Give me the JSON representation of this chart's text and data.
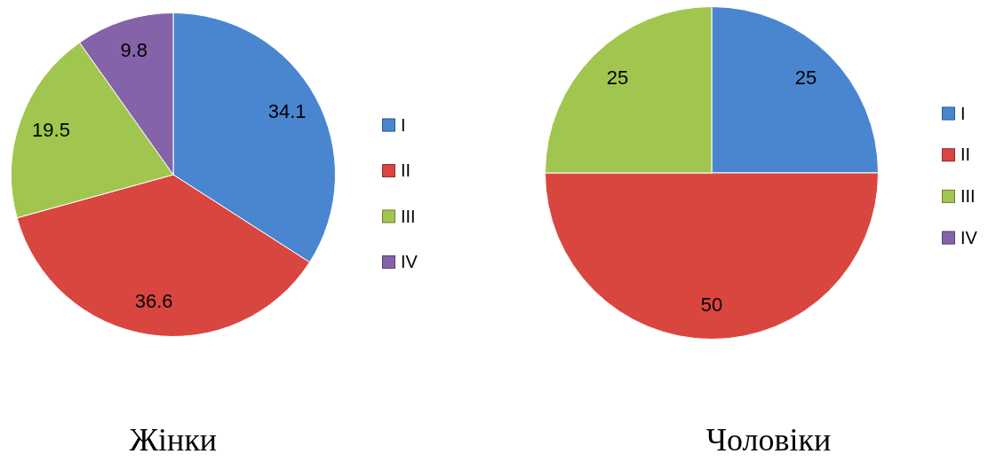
{
  "chart_data": [
    {
      "type": "pie",
      "title": "Жінки",
      "categories": [
        "I",
        "II",
        "III",
        "IV"
      ],
      "values": [
        34.1,
        36.6,
        19.5,
        9.8
      ],
      "colors": [
        "#4a86d0",
        "#d9463f",
        "#a1c64f",
        "#8563a9"
      ],
      "data_labels": true,
      "legend": "right"
    },
    {
      "type": "pie",
      "title": "Чоловіки",
      "categories": [
        "I",
        "II",
        "III",
        "IV"
      ],
      "values": [
        25,
        50,
        25,
        0
      ],
      "colors": [
        "#4a86d0",
        "#d9463f",
        "#a1c64f",
        "#8563a9"
      ],
      "value_labels": [
        "25",
        "50",
        "25",
        null
      ],
      "legend": "right"
    }
  ]
}
